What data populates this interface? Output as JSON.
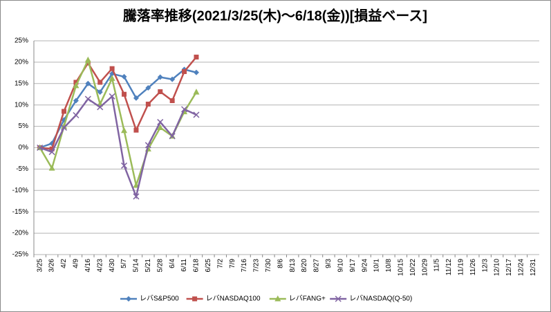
{
  "chart_data": {
    "type": "line",
    "title": "騰落率推移(2021/3/25(木)～6/18(金))[損益ベース]",
    "categories": [
      "3/25",
      "3/26",
      "4/2",
      "4/9",
      "4/16",
      "4/23",
      "4/30",
      "5/7",
      "5/14",
      "5/21",
      "5/28",
      "6/4",
      "6/11",
      "6/18",
      "6/25",
      "7/2",
      "7/9",
      "7/16",
      "7/23",
      "7/30",
      "8/6",
      "8/13",
      "8/20",
      "8/27",
      "9/3",
      "9/10",
      "9/17",
      "9/24",
      "10/1",
      "10/8",
      "10/15",
      "10/22",
      "10/29",
      "11/5",
      "11/12",
      "11/19",
      "11/26",
      "12/3",
      "12/10",
      "12/17",
      "12/24",
      "12/31"
    ],
    "series": [
      {
        "name": "レバS&P500",
        "color": "#4f81bd",
        "marker": "diamond",
        "values": [
          0,
          1,
          6.5,
          11,
          15,
          13,
          17.3,
          16.6,
          11.6,
          14,
          16.5,
          16,
          18.3,
          17.6,
          null,
          null,
          null,
          null,
          null,
          null,
          null,
          null,
          null,
          null,
          null,
          null,
          null,
          null,
          null,
          null,
          null,
          null,
          null,
          null,
          null,
          null,
          null,
          null,
          null,
          null,
          null,
          null
        ]
      },
      {
        "name": "レバNASDAQ100",
        "color": "#c0504d",
        "marker": "square",
        "values": [
          0,
          -0.3,
          8.5,
          15.3,
          19.8,
          15.3,
          18.5,
          12.5,
          4.1,
          10.2,
          13.1,
          11,
          17.8,
          21.2,
          null,
          null,
          null,
          null,
          null,
          null,
          null,
          null,
          null,
          null,
          null,
          null,
          null,
          null,
          null,
          null,
          null,
          null,
          null,
          null,
          null,
          null,
          null,
          null,
          null,
          null,
          null,
          null
        ]
      },
      {
        "name": "レバFANG+",
        "color": "#9bbb59",
        "marker": "triangle",
        "values": [
          0,
          -4.8,
          5,
          14.5,
          20.5,
          10.2,
          16.2,
          4,
          -8.8,
          -0.3,
          4.7,
          2.7,
          8.4,
          13,
          null,
          null,
          null,
          null,
          null,
          null,
          null,
          null,
          null,
          null,
          null,
          null,
          null,
          null,
          null,
          null,
          null,
          null,
          null,
          null,
          null,
          null,
          null,
          null,
          null,
          null,
          null,
          null
        ]
      },
      {
        "name": "レバNASDAQ(Q-50)",
        "color": "#8064a2",
        "marker": "x",
        "values": [
          0,
          -1,
          4.7,
          7.6,
          11.4,
          9.5,
          12,
          -4.2,
          -11.4,
          0.6,
          6,
          2.7,
          9,
          7.7,
          null,
          null,
          null,
          null,
          null,
          null,
          null,
          null,
          null,
          null,
          null,
          null,
          null,
          null,
          null,
          null,
          null,
          null,
          null,
          null,
          null,
          null,
          null,
          null,
          null,
          null,
          null,
          null
        ]
      }
    ],
    "ylim": [
      -25,
      25
    ],
    "yticks": [
      {
        "value": -25,
        "label": "-25%"
      },
      {
        "value": -20,
        "label": "-20%"
      },
      {
        "value": -15,
        "label": "-15%"
      },
      {
        "value": -10,
        "label": "-10%"
      },
      {
        "value": -5,
        "label": "-5%"
      },
      {
        "value": 0,
        "label": "0%"
      },
      {
        "value": 5,
        "label": "5%"
      },
      {
        "value": 10,
        "label": "10%"
      },
      {
        "value": 15,
        "label": "15%"
      },
      {
        "value": 20,
        "label": "20%"
      },
      {
        "value": 25,
        "label": "25%"
      }
    ],
    "grid": true,
    "legend": "bottom"
  }
}
